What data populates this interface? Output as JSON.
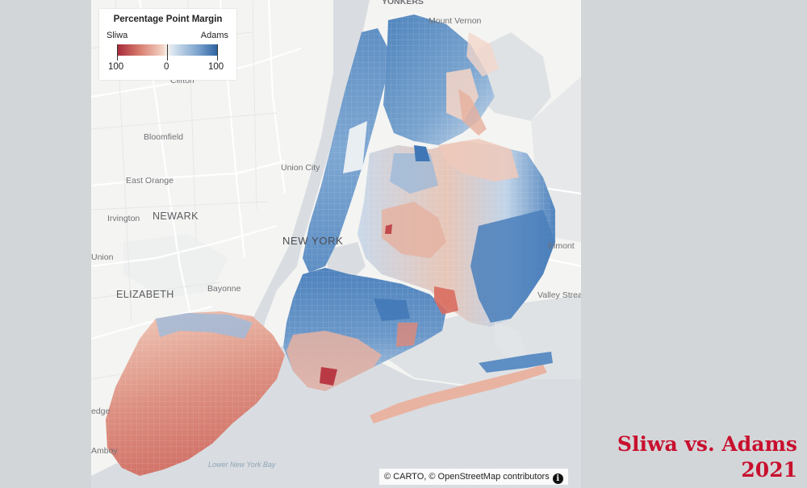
{
  "legend": {
    "title": "Percentage Point Margin",
    "left_label": "Sliwa",
    "right_label": "Adams",
    "ticks": [
      "100",
      "0",
      "100"
    ],
    "colors": {
      "sliwa": "#a5293a",
      "neutral": "#f7f2ee",
      "adams": "#2f64a3"
    }
  },
  "places": {
    "yonkers": "YONKERS",
    "mount_vernon": "Mount Vernon",
    "clifton": "Clifton",
    "bloomfield": "Bloomfield",
    "union_city": "Union City",
    "east_orange": "East Orange",
    "irvington": "Irvington",
    "newark": "NEWARK",
    "new_york": "NEW YORK",
    "union": "Union",
    "elizabeth": "ELIZABETH",
    "bayonne": "Bayonne",
    "elmont": "Elmont",
    "valley_stream": "Valley Strea",
    "edge": "edge",
    "amboy": "Amboy",
    "lower_bay": "Lower New York Bay"
  },
  "attribution": {
    "text": "© CARTO, © OpenStreetMap contributors",
    "info_glyph": "i"
  },
  "caption": {
    "line1": "Sliwa vs. Adams",
    "line2": "2021"
  }
}
